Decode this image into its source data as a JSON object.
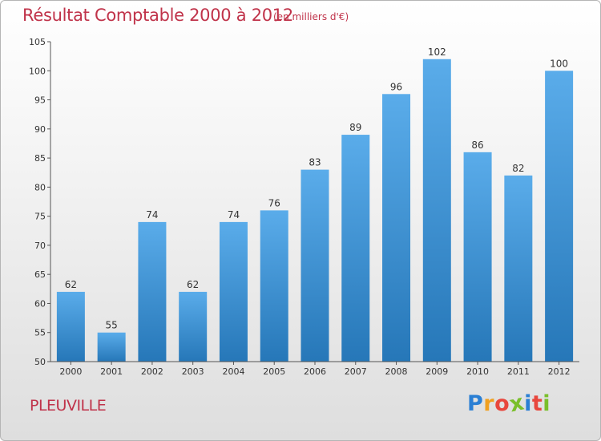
{
  "header": {
    "title": "Résultat Comptable 2000 à 2012",
    "subtitle": "(en milliers d'€)"
  },
  "footer": {
    "city": "PLEUVILLE",
    "logo_letters": [
      "P",
      "r",
      "o",
      "x",
      "i",
      "t",
      "i"
    ],
    "logo_colors": [
      "#2a7fd4",
      "#f0a020",
      "#e8463c",
      "#7abf2a",
      "#2a7fd4",
      "#e8463c",
      "#7abf2a"
    ]
  },
  "colors": {
    "bar_light": "#5aacea",
    "bar_dark": "#2677b8",
    "axis": "#555555",
    "grid": "#d0d0d0",
    "accent": "#c0334a"
  },
  "chart_data": {
    "type": "bar",
    "title": "Résultat Comptable 2000 à 2012",
    "subtitle": "(en milliers d'€)",
    "categories": [
      "2000",
      "2001",
      "2002",
      "2003",
      "2004",
      "2005",
      "2006",
      "2007",
      "2008",
      "2009",
      "2010",
      "2011",
      "2012"
    ],
    "values": [
      62,
      55,
      74,
      62,
      74,
      76,
      83,
      89,
      96,
      102,
      86,
      82,
      100
    ],
    "value_labels": [
      "62",
      "55",
      "74",
      "62",
      "74",
      "76",
      "83",
      "89",
      "96",
      "102",
      "86",
      "82",
      "100"
    ],
    "ylim": [
      50,
      105
    ],
    "yticks": [
      50,
      55,
      60,
      65,
      70,
      75,
      80,
      85,
      90,
      95,
      100,
      105
    ],
    "ytick_labels": [
      "50",
      "55",
      "60",
      "65",
      "70",
      "75",
      "80",
      "85",
      "90",
      "95",
      "100",
      "105"
    ],
    "xlabel": "",
    "ylabel": "",
    "grid": false,
    "legend": "none"
  }
}
